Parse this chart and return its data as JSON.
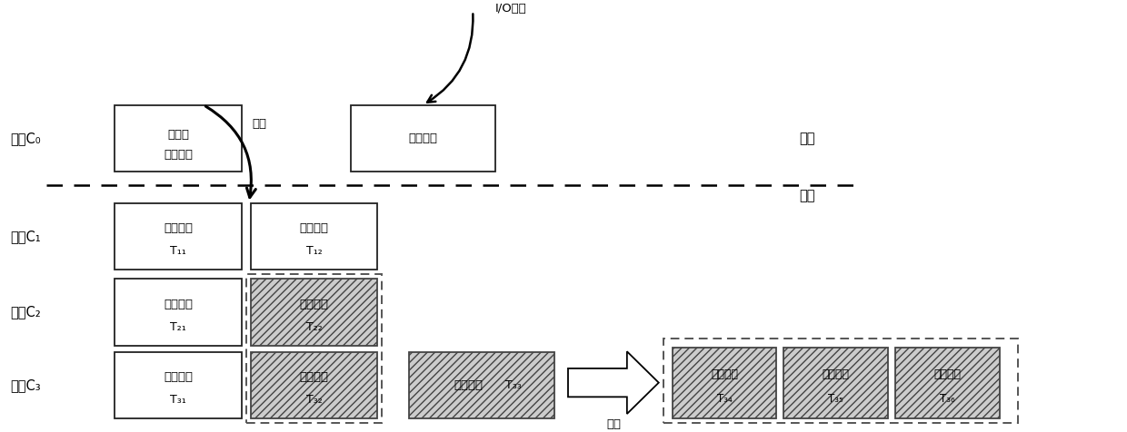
{
  "bg_color": "#ffffff",
  "fig_width": 12.4,
  "fig_height": 4.76,
  "label_c0": "组件C₀",
  "label_c1": "组件C₁",
  "label_c2": "组件C₂",
  "label_c3": "组件C₃",
  "text_readonly": "只读的\n内存数据",
  "text_mem_data": "内存数据",
  "text_merge_c0": "合并",
  "text_data_file": "数据文件",
  "text_io": "I/O操作",
  "text_memory": "内存",
  "text_disk": "磁盘",
  "text_merge_c3": "合并",
  "t11": "T₁₁",
  "t12": "T₁₂",
  "t21": "T₂₁",
  "t22": "T₂₂",
  "t31": "T₃₁",
  "t32": "T₃₂",
  "t33": "T₃₃",
  "t34": "T₃₄",
  "t35": "T₃₅",
  "t36": "T₃₆",
  "hatch_pattern": "////",
  "solid_box_color": "#ffffff",
  "hatch_box_facecolor": "#cccccc",
  "solid_edge_color": "#222222",
  "hatch_edge_color": "#444444",
  "dashed_border_color": "#555555",
  "sep_line_color": "#000000",
  "arrow_color": "#000000"
}
